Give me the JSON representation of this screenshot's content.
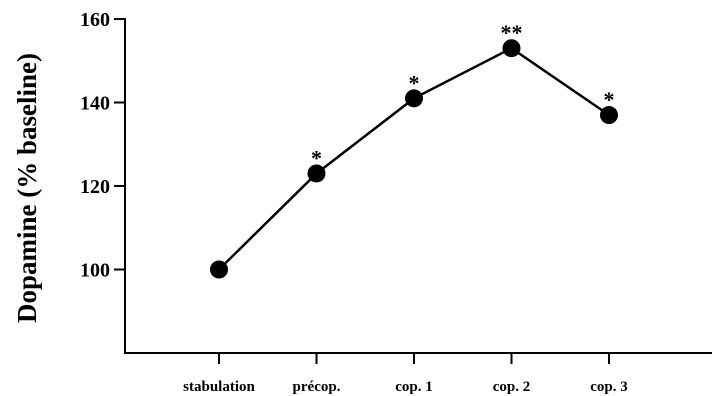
{
  "chart_data": {
    "type": "line",
    "title": "",
    "xlabel": "",
    "ylabel": "Dopamine (% baseline)",
    "categories": [
      "stabulation",
      "précop.",
      "cop. 1",
      "cop. 2",
      "cop. 3"
    ],
    "values": [
      100,
      123,
      141,
      153,
      137
    ],
    "significance": [
      "",
      "*",
      "*",
      "**",
      "*"
    ],
    "ylim": [
      80,
      160
    ],
    "yticks": [
      100,
      120,
      140,
      160
    ],
    "grid": false,
    "legend": "none",
    "marker": "filled-circle",
    "line_color": "#000000"
  }
}
